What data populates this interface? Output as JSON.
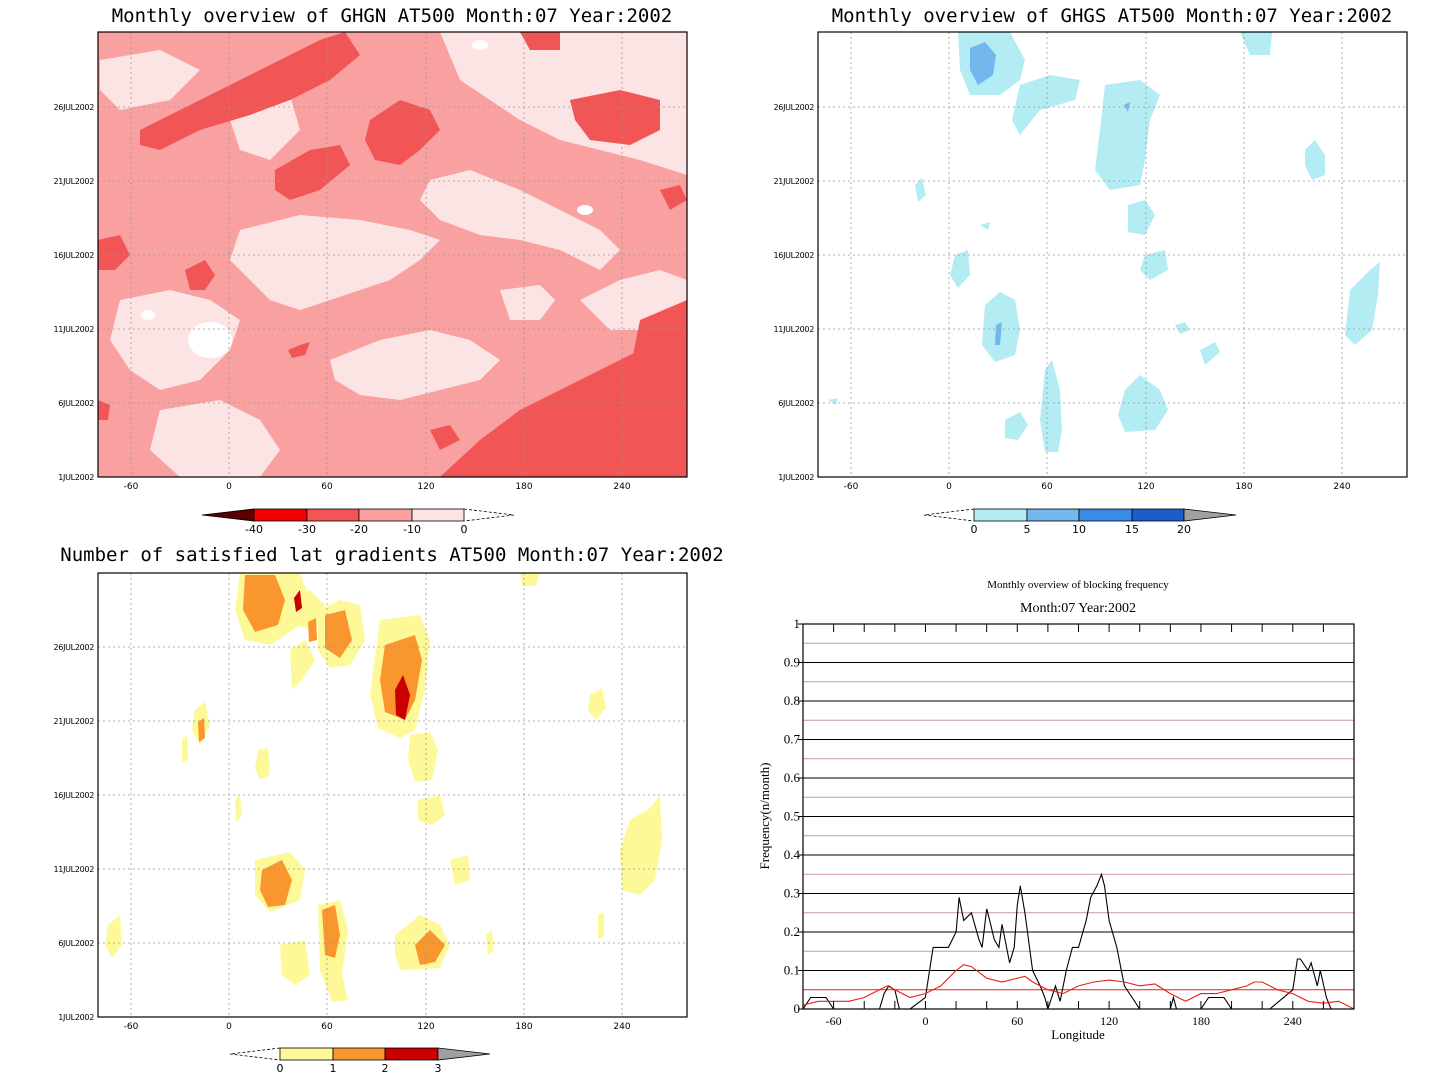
{
  "chart_data": [
    {
      "type": "heatmap",
      "title": "Monthly overview of GHGN AT500 Month:07 Year:2002",
      "x_ticks": [
        "-60",
        "0",
        "60",
        "120",
        "180",
        "240"
      ],
      "y_ticks": [
        "1JUL2002",
        "6JUL2002",
        "11JUL2002",
        "16JUL2002",
        "21JUL2002",
        "26JUL2002"
      ],
      "xlim": [
        -80,
        280
      ],
      "colorbar": {
        "levels": [
          "-40",
          "-30",
          "-20",
          "-10",
          "0"
        ],
        "colors": [
          "#5a0000",
          "#ee0000",
          "#f25555",
          "#f9a0a0",
          "#fde4e4"
        ]
      },
      "grid": true
    },
    {
      "type": "heatmap",
      "title": "Monthly overview of GHGS AT500 Month:07 Year:2002",
      "x_ticks": [
        "-60",
        "0",
        "60",
        "120",
        "180",
        "240"
      ],
      "y_ticks": [
        "1JUL2002",
        "6JUL2002",
        "11JUL2002",
        "16JUL2002",
        "21JUL2002",
        "26JUL2002"
      ],
      "xlim": [
        -80,
        280
      ],
      "colorbar": {
        "levels": [
          "0",
          "5",
          "10",
          "15",
          "20"
        ],
        "colors": [
          "#b4ecf4",
          "#72b8ee",
          "#3a8ae8",
          "#1a5ecc",
          "#a0a0a0"
        ]
      },
      "grid": true
    },
    {
      "type": "heatmap",
      "title": "Number of satisfied lat gradients AT500 Month:07 Year:2002",
      "x_ticks": [
        "-60",
        "0",
        "60",
        "120",
        "180",
        "240"
      ],
      "y_ticks": [
        "1JUL2002",
        "6JUL2002",
        "11JUL2002",
        "16JUL2002",
        "21JUL2002",
        "26JUL2002"
      ],
      "xlim": [
        -80,
        280
      ],
      "colorbar": {
        "levels": [
          "0",
          "1",
          "2",
          "3"
        ],
        "colors": [
          "#fdf998",
          "#f9962e",
          "#c80000",
          "#a0a0a0"
        ]
      },
      "grid": true
    },
    {
      "type": "line",
      "title": "Monthly overview of blocking frequency",
      "subtitle": "Month:07 Year:2002",
      "xlabel": "Longitude",
      "ylabel": "Frequency(n/month)",
      "xlim": [
        -80,
        280
      ],
      "ylim": [
        0,
        1
      ],
      "x_ticks": [
        "-60",
        "0",
        "60",
        "120",
        "180",
        "240"
      ],
      "y_ticks": [
        "0",
        "0.1",
        "0.2",
        "0.3",
        "0.4",
        "0.5",
        "0.6",
        "0.7",
        "0.8",
        "0.9",
        "1"
      ],
      "grid": true,
      "series": [
        {
          "color": "#000000",
          "x": [
            -80,
            -75,
            -72,
            -68,
            -65,
            -60,
            -40,
            -30,
            -27,
            -24,
            -20,
            -17,
            -10,
            0,
            5,
            10,
            15,
            20,
            22,
            25,
            30,
            35,
            37,
            40,
            42,
            45,
            48,
            50,
            55,
            58,
            60,
            62,
            65,
            70,
            75,
            78,
            80,
            85,
            88,
            92,
            96,
            100,
            105,
            108,
            112,
            115,
            117,
            120,
            125,
            130,
            135,
            140,
            145,
            150,
            160,
            162,
            164,
            180,
            185,
            195,
            200,
            210,
            220,
            225,
            240,
            243,
            245,
            250,
            252,
            256,
            258,
            262,
            265,
            270,
            275,
            280
          ],
          "y": [
            0,
            0.03,
            0.03,
            0.03,
            0.03,
            0,
            0,
            0,
            0.04,
            0.06,
            0.05,
            0,
            0,
            0.03,
            0.16,
            0.16,
            0.16,
            0.2,
            0.29,
            0.23,
            0.25,
            0.18,
            0.16,
            0.26,
            0.23,
            0.18,
            0.16,
            0.22,
            0.12,
            0.16,
            0.27,
            0.32,
            0.25,
            0.1,
            0.06,
            0.03,
            0,
            0.06,
            0.02,
            0.1,
            0.16,
            0.16,
            0.23,
            0.29,
            0.32,
            0.35,
            0.32,
            0.23,
            0.16,
            0.06,
            0.03,
            0,
            0,
            0,
            0,
            0.03,
            0,
            0,
            0.03,
            0.03,
            0,
            0,
            0,
            0,
            0.05,
            0.13,
            0.13,
            0.1,
            0.12,
            0.06,
            0.1,
            0.03,
            0,
            0,
            0,
            0
          ]
        },
        {
          "color": "#e8201b",
          "x": [
            -80,
            -70,
            -60,
            -50,
            -40,
            -30,
            -25,
            -20,
            -10,
            0,
            10,
            20,
            25,
            30,
            40,
            50,
            60,
            65,
            70,
            80,
            90,
            100,
            110,
            120,
            130,
            140,
            150,
            160,
            170,
            180,
            190,
            200,
            210,
            215,
            220,
            230,
            240,
            250,
            260,
            270,
            280
          ],
          "y": [
            0.01,
            0.02,
            0.02,
            0.02,
            0.03,
            0.05,
            0.06,
            0.05,
            0.03,
            0.04,
            0.06,
            0.1,
            0.115,
            0.11,
            0.08,
            0.07,
            0.08,
            0.085,
            0.07,
            0.05,
            0.04,
            0.06,
            0.07,
            0.075,
            0.07,
            0.06,
            0.065,
            0.04,
            0.02,
            0.04,
            0.04,
            0.05,
            0.06,
            0.07,
            0.07,
            0.05,
            0.04,
            0.02,
            0.015,
            0.02,
            0
          ]
        }
      ],
      "hlines": [
        {
          "y": 0.05,
          "color": "#e8201b"
        },
        {
          "y": 0.15,
          "color": "#cc9999"
        },
        {
          "y": 0.25,
          "color": "#cc9999"
        },
        {
          "y": 0.35,
          "color": "#cc9999"
        },
        {
          "y": 0.45,
          "color": "#cc9999"
        },
        {
          "y": 0.55,
          "color": "#cc9999"
        },
        {
          "y": 0.65,
          "color": "#cc9999"
        },
        {
          "y": 0.75,
          "color": "#cc9999"
        },
        {
          "y": 0.85,
          "color": "#cc9999"
        },
        {
          "y": 0.95,
          "color": "#cc9999"
        }
      ]
    }
  ]
}
